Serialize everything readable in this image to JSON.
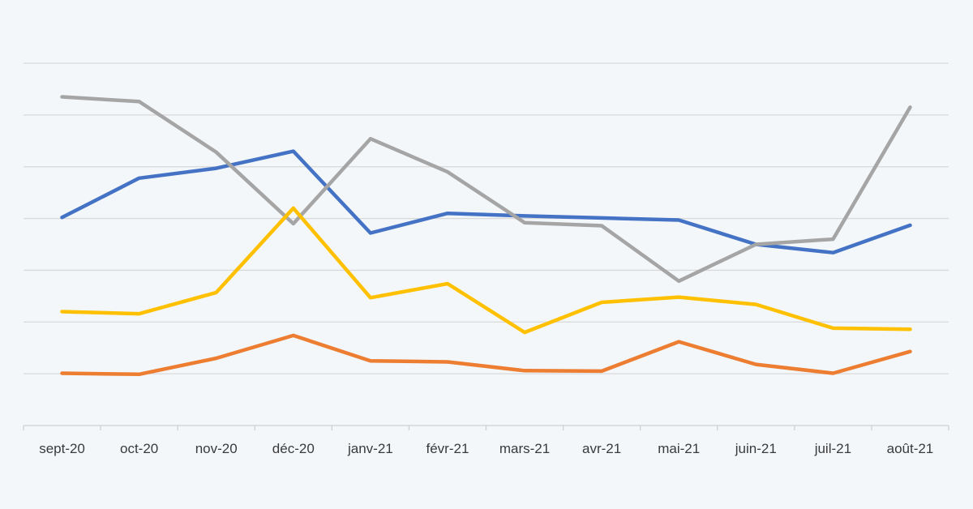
{
  "chart_data": {
    "type": "line",
    "categories": [
      "sept-20",
      "oct-20",
      "nov-20",
      "déc-20",
      "janv-21",
      "févr-21",
      "mars-21",
      "avr-21",
      "mai-21",
      "juin-21",
      "juil-21",
      "août-21"
    ],
    "ylim": [
      0,
      7
    ],
    "y_tick_labels_shown": false,
    "grid": true,
    "legend": "none",
    "series": [
      {
        "color": "#4472c4",
        "values": [
          4.02,
          4.78,
          4.97,
          5.3,
          3.72,
          4.1,
          4.05,
          4.01,
          3.97,
          3.5,
          3.34,
          3.87
        ]
      },
      {
        "color": "#a5a5a5",
        "values": [
          6.35,
          6.26,
          5.28,
          3.9,
          5.54,
          4.9,
          3.92,
          3.86,
          2.79,
          3.5,
          3.6,
          6.15
        ]
      },
      {
        "color": "#ffc000",
        "values": [
          2.2,
          2.16,
          2.57,
          4.2,
          2.47,
          2.74,
          1.8,
          2.38,
          2.48,
          2.34,
          1.88,
          1.86
        ]
      },
      {
        "color": "#ed7d31",
        "values": [
          1.01,
          0.99,
          1.3,
          1.74,
          1.25,
          1.23,
          1.06,
          1.05,
          1.62,
          1.18,
          1.01,
          1.43
        ]
      }
    ]
  }
}
